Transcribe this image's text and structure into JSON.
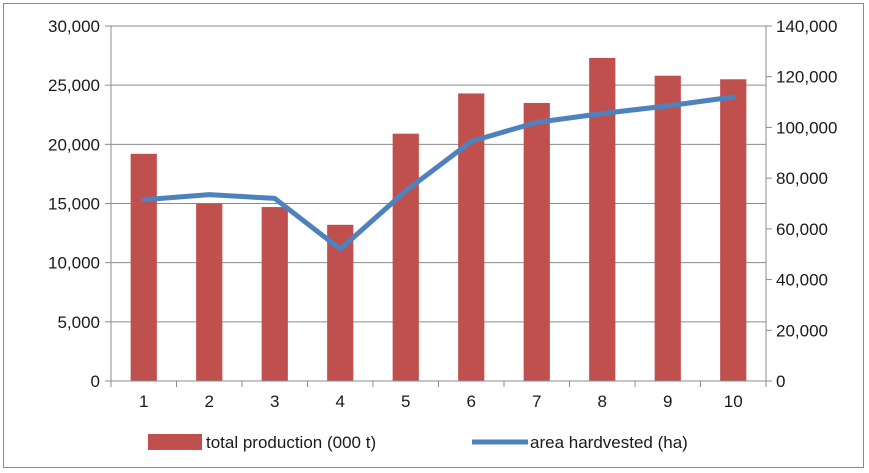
{
  "chart_data": {
    "type": "bar",
    "categories": [
      "1",
      "2",
      "3",
      "4",
      "5",
      "6",
      "7",
      "8",
      "9",
      "10"
    ],
    "series": [
      {
        "name": "total production (000 t)",
        "type": "bar",
        "axis": "left",
        "color": "#c0504d",
        "values": [
          19200,
          15000,
          14700,
          13200,
          20900,
          24300,
          23500,
          27300,
          25800,
          25500
        ]
      },
      {
        "name": "area hardvested (ha)",
        "type": "line",
        "axis": "right",
        "color": "#4f81bd",
        "values": [
          71500,
          73500,
          72000,
          52000,
          75000,
          94500,
          102000,
          105500,
          108500,
          112000
        ]
      }
    ],
    "y_left": {
      "ylim": [
        0,
        30000
      ],
      "ticks": [
        0,
        5000,
        10000,
        15000,
        20000,
        25000,
        30000
      ],
      "tick_labels": [
        "0",
        "5,000",
        "10,000",
        "15,000",
        "20,000",
        "25,000",
        "30,000"
      ]
    },
    "y_right": {
      "ylim": [
        0,
        140000
      ],
      "ticks": [
        0,
        20000,
        40000,
        60000,
        80000,
        100000,
        120000,
        140000
      ],
      "tick_labels": [
        "0",
        "20,000",
        "40,000",
        "60,000",
        "80,000",
        "100,000",
        "120,000",
        "140,000"
      ]
    },
    "title": "",
    "xlabel": "",
    "ylabel": "",
    "grid": "horizontal",
    "legend": "bottom"
  }
}
